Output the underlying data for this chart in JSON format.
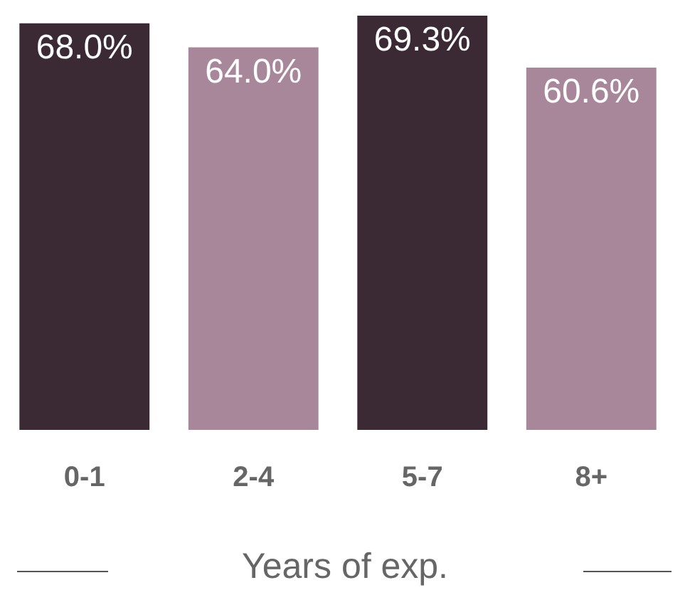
{
  "chart_data": {
    "type": "bar",
    "xlabel": "Years of exp.",
    "categories": [
      "0-1",
      "2-4",
      "5-7",
      "8+"
    ],
    "values": [
      68.0,
      64.0,
      69.3,
      60.6
    ],
    "colors": [
      "#3b2933",
      "#a8879a",
      "#3b2933",
      "#a8879a"
    ],
    "value_labels": [
      "68.0%",
      "64.0%",
      "69.3%",
      "60.6%"
    ],
    "tick_labels": "x",
    "grid": false,
    "legend": false
  }
}
